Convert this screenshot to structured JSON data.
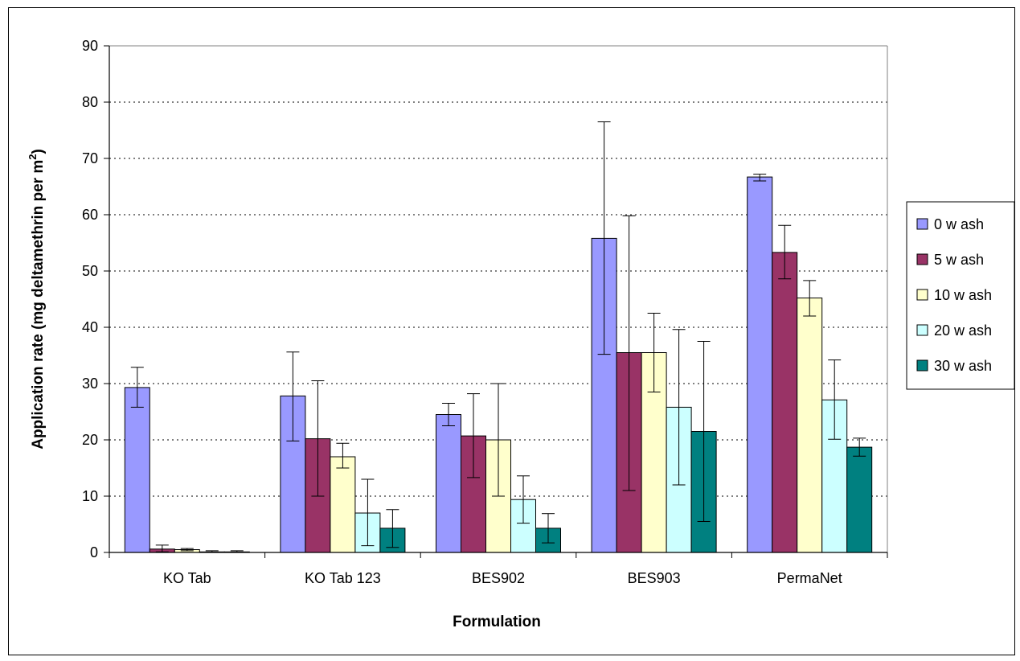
{
  "chart_data": {
    "type": "bar",
    "title": "",
    "xlabel": "Formulation",
    "ylabel_main": "Application rate (mg deltamethrin per m",
    "ylabel_sup": "2",
    "ylabel_close": ")",
    "ylim": [
      0,
      90
    ],
    "yticks": [
      "0",
      "10",
      "20",
      "30",
      "40",
      "50",
      "60",
      "70",
      "80",
      "90"
    ],
    "grid": true,
    "legend_position": "right",
    "categories": [
      "KO Tab",
      "KO Tab 123",
      "BES902",
      "BES903",
      "PermaNet"
    ],
    "series": [
      {
        "name": "0 w ash",
        "color": "#9999FF",
        "values": [
          29.3,
          27.8,
          24.5,
          55.8,
          66.7
        ],
        "err_low": [
          25.8,
          19.8,
          22.5,
          35.2,
          66.0
        ],
        "err_high": [
          32.9,
          35.6,
          26.5,
          76.5,
          67.2
        ]
      },
      {
        "name": "5 w ash",
        "color": "#993366",
        "values": [
          0.6,
          20.2,
          20.7,
          35.5,
          53.3
        ],
        "err_low": [
          0.1,
          10.0,
          13.3,
          11.0,
          48.6
        ],
        "err_high": [
          1.3,
          30.5,
          28.2,
          59.8,
          58.1
        ]
      },
      {
        "name": "10 w ash",
        "color": "#FFFFCC",
        "values": [
          0.5,
          17.0,
          20.0,
          35.5,
          45.2
        ],
        "err_low": [
          0.3,
          15.0,
          10.0,
          28.5,
          42.0
        ],
        "err_high": [
          0.7,
          19.4,
          30.0,
          42.5,
          48.3
        ]
      },
      {
        "name": "20 w ash",
        "color": "#CCFFFF",
        "values": [
          0.1,
          7.0,
          9.4,
          25.8,
          27.1
        ],
        "err_low": [
          0.0,
          1.2,
          5.2,
          12.0,
          20.1
        ],
        "err_high": [
          0.3,
          13.0,
          13.6,
          39.6,
          34.2
        ]
      },
      {
        "name": "30 w ash",
        "color": "#008080",
        "values": [
          0.1,
          4.3,
          4.3,
          21.5,
          18.7
        ],
        "err_low": [
          0.0,
          0.9,
          1.7,
          5.5,
          17.1
        ],
        "err_high": [
          0.3,
          7.6,
          6.9,
          37.5,
          20.3
        ]
      }
    ]
  }
}
